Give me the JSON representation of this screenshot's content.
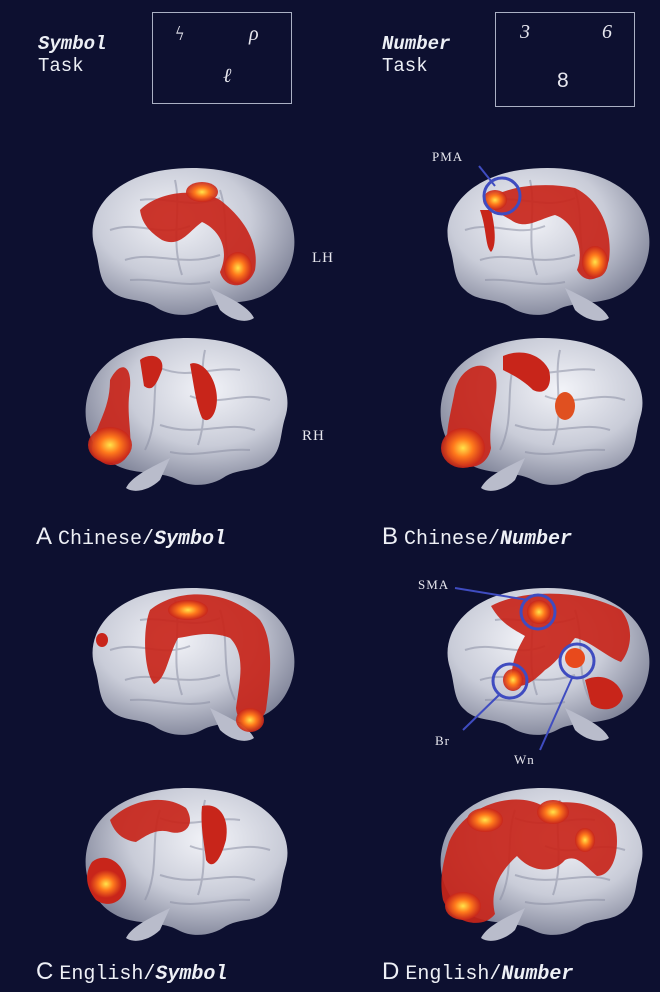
{
  "symbol_task": {
    "word": "Symbol",
    "task": "Task",
    "glyphs": [
      "ϟ",
      "ρ",
      "ℓ"
    ]
  },
  "number_task": {
    "word": "Number",
    "task": "Task",
    "digits": [
      "3",
      "6",
      "8"
    ]
  },
  "hemispheres": {
    "left": "LH",
    "right": "RH"
  },
  "annotations": {
    "pma": "PMA",
    "sma": "SMA",
    "br": "Br",
    "wn": "Wn"
  },
  "panels": [
    {
      "letter": "A",
      "language": "Chinese/",
      "task": "Symbol"
    },
    {
      "letter": "B",
      "language": "Chinese/",
      "task": "Number"
    },
    {
      "letter": "C",
      "language": "English/",
      "task": "Symbol"
    },
    {
      "letter": "D",
      "language": "English/",
      "task": "Number"
    }
  ],
  "colors": {
    "background": "#0d1030",
    "brain": "#c9ccd8",
    "activation": "#d8301a",
    "activation_hot": "#ffd23a",
    "roi_circle": "#3f4cc0"
  }
}
